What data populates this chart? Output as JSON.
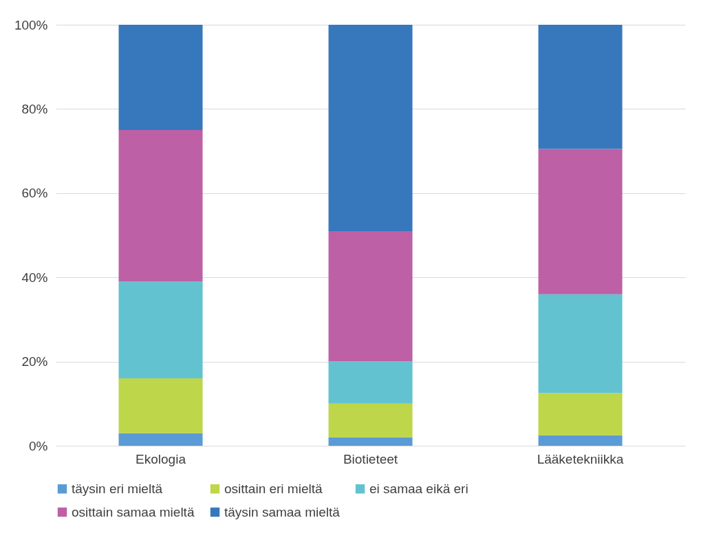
{
  "chart_data": {
    "type": "bar",
    "stacked": true,
    "categories": [
      "Ekologia",
      "Biotieteet",
      "Lääketekniikka"
    ],
    "series": [
      {
        "name": "täysin eri mieltä",
        "color": "#5b9bd5",
        "values": [
          3,
          2,
          2.5
        ]
      },
      {
        "name": "osittain eri mieltä",
        "color": "#bed64a",
        "values": [
          13,
          8,
          10
        ]
      },
      {
        "name": "ei samaa eikä eri",
        "color": "#62c2d0",
        "values": [
          23,
          10,
          23.5
        ]
      },
      {
        "name": "osittain samaa mieltä",
        "color": "#bd60a6",
        "values": [
          36,
          31,
          34.5
        ]
      },
      {
        "name": "täysin samaa mieltä",
        "color": "#3778bd",
        "values": [
          25,
          49,
          29.5
        ]
      }
    ],
    "ylim": [
      0,
      100
    ],
    "yticks": [
      {
        "value": 0,
        "label": "0%"
      },
      {
        "value": 20,
        "label": "20%"
      },
      {
        "value": 40,
        "label": "40%"
      },
      {
        "value": 60,
        "label": "60%"
      },
      {
        "value": 80,
        "label": "80%"
      },
      {
        "value": 100,
        "label": "100%"
      }
    ],
    "grid": "y",
    "legend": "bottom"
  }
}
